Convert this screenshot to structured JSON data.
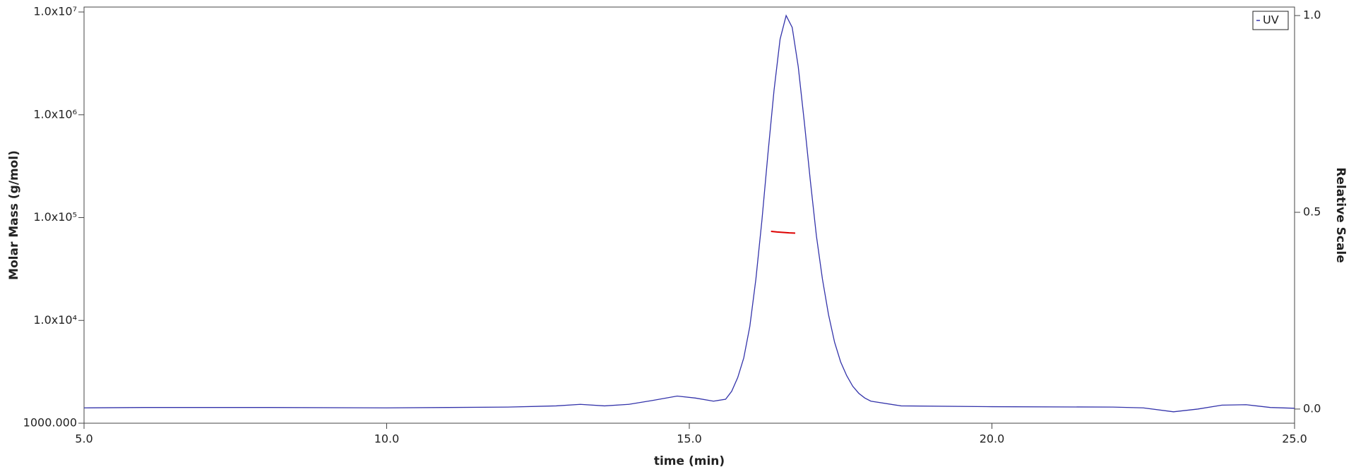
{
  "chart_data": {
    "type": "line",
    "xlabel": "time (min)",
    "ylabel": "Molar Mass (g/mol)",
    "y2label": "Relative Scale",
    "xlim": [
      5,
      25
    ],
    "xticks": [
      {
        "value": 5,
        "label": "5.0"
      },
      {
        "value": 10,
        "label": "10.0"
      },
      {
        "value": 15,
        "label": "15.0"
      },
      {
        "value": 20,
        "label": "20.0"
      },
      {
        "value": 25,
        "label": "25.0"
      }
    ],
    "ylim": [
      1000,
      10000000
    ],
    "ylog": true,
    "yticks": [
      {
        "value": 1000,
        "label": "1000.000"
      },
      {
        "value": 10000,
        "label": "1.0x10⁴"
      },
      {
        "value": 100000,
        "label": "1.0x10⁵"
      },
      {
        "value": 1000000,
        "label": "1.0x10⁶"
      },
      {
        "value": 10000000,
        "label": "1.0x10⁷"
      }
    ],
    "y2lim": [
      -0.036,
      1.027
    ],
    "y2ticks": [
      {
        "value": 0,
        "label": "0.0"
      },
      {
        "value": 0.5,
        "label": "0.5"
      },
      {
        "value": 1,
        "label": "1.0"
      }
    ],
    "legend": "top-right",
    "series": [
      {
        "name": "UV",
        "color": "#3333aa",
        "axis": "y2",
        "x": [
          5,
          6,
          8,
          10,
          11,
          12,
          12.8,
          13.2,
          13.6,
          14.0,
          14.4,
          14.8,
          15.1,
          15.4,
          15.6,
          15.7,
          15.8,
          15.9,
          16.0,
          16.1,
          16.2,
          16.3,
          16.4,
          16.5,
          16.6,
          16.7,
          16.8,
          16.9,
          17.0,
          17.1,
          17.2,
          17.3,
          17.4,
          17.5,
          17.6,
          17.7,
          17.8,
          17.9,
          18.0,
          18.5,
          20,
          22,
          22.5,
          23.0,
          23.4,
          23.8,
          24.2,
          24.6,
          25
        ],
        "values": [
          0.003,
          0.004,
          0.004,
          0.003,
          0.004,
          0.005,
          0.008,
          0.012,
          0.008,
          0.012,
          0.022,
          0.033,
          0.028,
          0.02,
          0.025,
          0.045,
          0.08,
          0.13,
          0.21,
          0.33,
          0.48,
          0.65,
          0.81,
          0.94,
          1.0,
          0.97,
          0.87,
          0.73,
          0.58,
          0.44,
          0.33,
          0.24,
          0.17,
          0.12,
          0.085,
          0.058,
          0.04,
          0.028,
          0.02,
          0.008,
          0.006,
          0.005,
          0.003,
          -0.007,
          0.0,
          0.01,
          0.011,
          0.004,
          0.002
        ]
      },
      {
        "color": "#dd0000",
        "axis": "y",
        "x": [
          16.35,
          16.45,
          16.55,
          16.65,
          16.75
        ],
        "values": [
          73500,
          72500,
          71800,
          71000,
          70700
        ]
      }
    ]
  }
}
